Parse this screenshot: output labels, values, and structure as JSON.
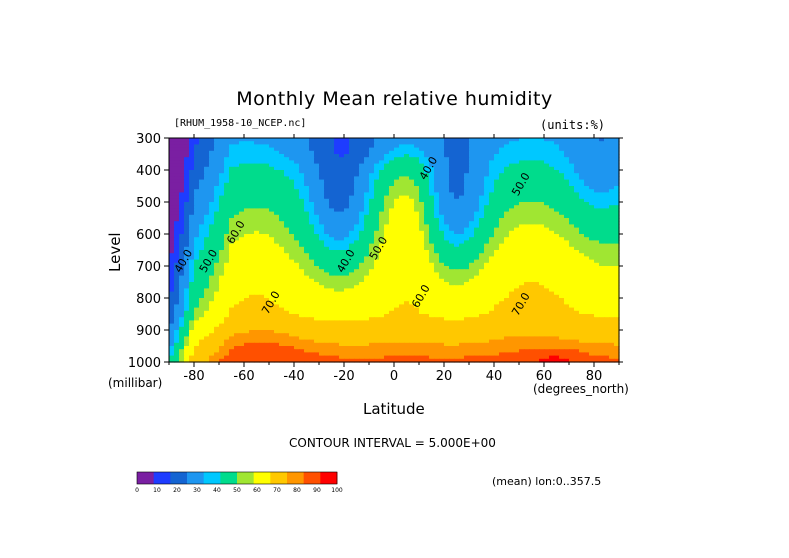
{
  "chart_data": {
    "type": "heatmap",
    "title": "Monthly Mean relative humidity",
    "dataset_label": "[RHUM_1958-10_NCEP.nc]",
    "units_label": "(units:%)",
    "xlabel": "Latitude",
    "x_units": "(degrees_north)",
    "ylabel": "Level",
    "y_units": "(millibar)",
    "xlim": [
      -90,
      90
    ],
    "ylim": [
      1000,
      300
    ],
    "x_ticks": [
      -80,
      -60,
      -40,
      -20,
      0,
      20,
      40,
      60,
      80
    ],
    "y_ticks": [
      300,
      400,
      500,
      600,
      700,
      800,
      900,
      1000
    ],
    "contour_interval_text": "CONTOUR INTERVAL = 5.000E+00",
    "mean_note": "(mean) lon:0..357.5",
    "contour_labels": [
      {
        "text": "40.0",
        "lat": -83,
        "lev": 690
      },
      {
        "text": "50.0",
        "lat": -73,
        "lev": 690
      },
      {
        "text": "60.0",
        "lat": -62,
        "lev": 600
      },
      {
        "text": "70.0",
        "lat": -48,
        "lev": 820
      },
      {
        "text": "40.0",
        "lat": -18,
        "lev": 690
      },
      {
        "text": "50.0",
        "lat": -5,
        "lev": 650
      },
      {
        "text": "40.0",
        "lat": 15,
        "lev": 400
      },
      {
        "text": "60.0",
        "lat": 12,
        "lev": 800
      },
      {
        "text": "50.0",
        "lat": 52,
        "lev": 450
      },
      {
        "text": "70.0",
        "lat": 52,
        "lev": 825
      }
    ],
    "colorbar": {
      "colors": [
        "#7a1fa2",
        "#1e3cff",
        "#1464d2",
        "#1e96f0",
        "#00c8ff",
        "#00dc8c",
        "#a0e632",
        "#ffff00",
        "#ffc800",
        "#ff9600",
        "#ff5000",
        "#ff0000"
      ],
      "tick_labels": [
        "0",
        "10",
        "20",
        "30",
        "40",
        "50",
        "60",
        "70",
        "80",
        "90",
        "100"
      ]
    },
    "level_colors": [
      "#7a1fa2",
      "#1e3cff",
      "#1464d2",
      "#1e96f0",
      "#00c8ff",
      "#00dc8c",
      "#a0e632",
      "#ffff00",
      "#ffc800",
      "#ff9600",
      "#ff5000",
      "#ff0000"
    ],
    "level_thresholds": [
      10,
      20,
      30,
      40,
      45,
      55,
      60,
      70,
      80,
      85,
      92
    ]
  }
}
